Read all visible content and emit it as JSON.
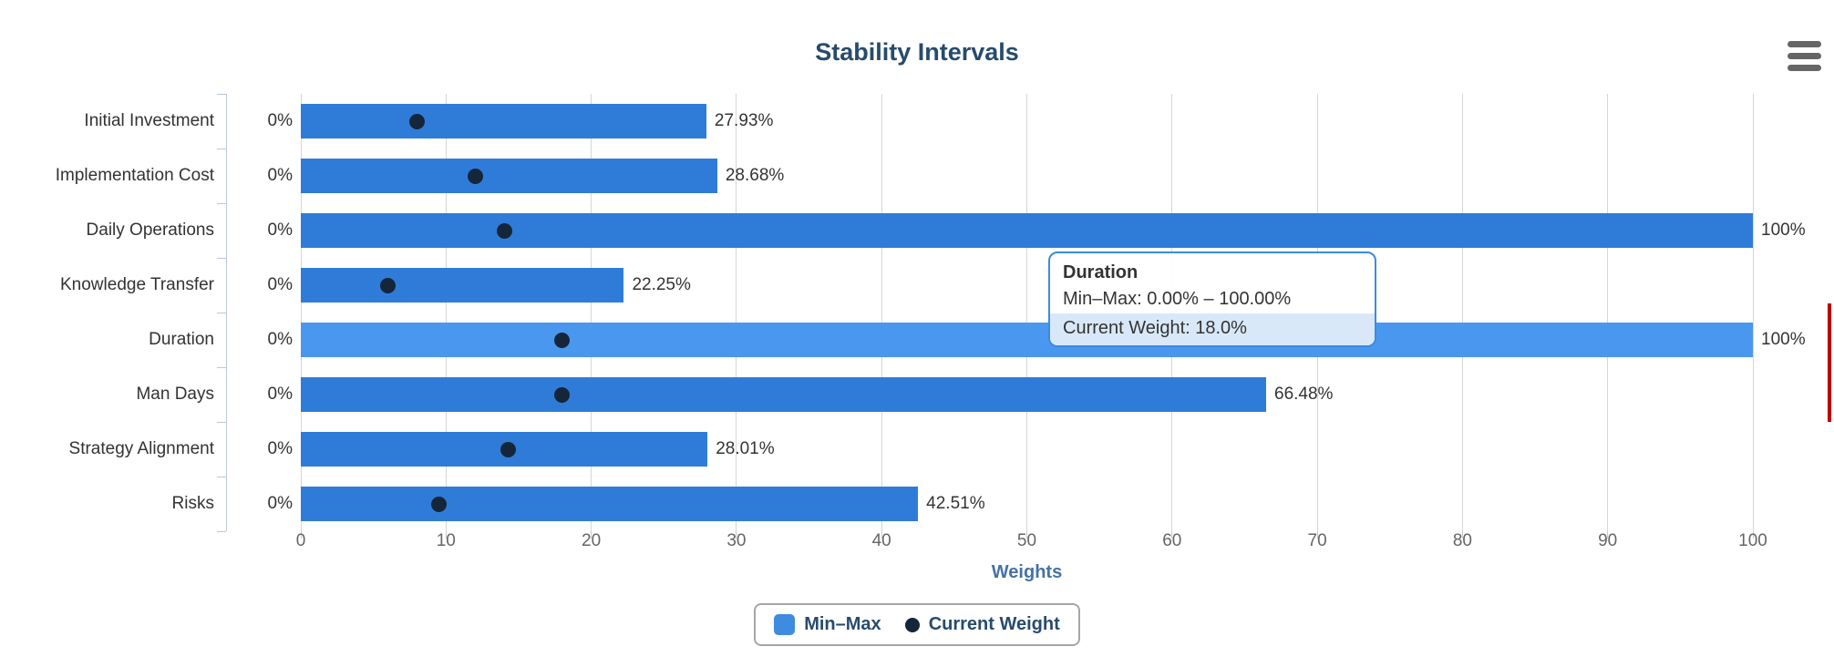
{
  "title": "Stability Intervals",
  "chart_data": {
    "type": "bar",
    "orientation": "horizontal",
    "title": "Stability Intervals",
    "categories": [
      "Initial Investment",
      "Implementation Cost",
      "Daily Operations",
      "Knowledge Transfer",
      "Duration",
      "Man Days",
      "Strategy Alignment",
      "Risks"
    ],
    "series": [
      {
        "name": "Min–Max",
        "type": "range",
        "min": [
          0,
          0,
          0,
          0,
          0,
          0,
          0,
          0
        ],
        "max": [
          27.93,
          28.68,
          100,
          22.25,
          100,
          66.48,
          28.01,
          42.51
        ]
      },
      {
        "name": "Current Weight",
        "type": "scatter",
        "values": [
          8,
          12,
          14,
          6,
          18,
          18,
          14.3,
          9.5
        ]
      }
    ],
    "bar_min_labels": [
      "0%",
      "0%",
      "0%",
      "0%",
      "0%",
      "0%",
      "0%",
      "0%"
    ],
    "bar_max_labels": [
      "27.93%",
      "28.68%",
      "100%",
      "22.25%",
      "100%",
      "66.48%",
      "28.01%",
      "42.51%"
    ],
    "xlabel": "Weights",
    "xlim": [
      0,
      100
    ],
    "xticks": [
      0,
      10,
      20,
      30,
      40,
      50,
      60,
      70,
      80,
      90,
      100
    ],
    "grid": true,
    "legend_position": "bottom",
    "highlighted_index": 4
  },
  "tooltip": {
    "title": "Duration",
    "minmax_line": "Min–Max: 0.00% – 100.00%",
    "weight_line": "Current Weight: 18.0%"
  },
  "legend": {
    "items": [
      {
        "label": "Min–Max",
        "marker": "square"
      },
      {
        "label": "Current Weight",
        "marker": "dot"
      }
    ]
  },
  "colors": {
    "bar": "#2f7cd8",
    "bar_highlight": "#4a97ef",
    "dot": "#15263a",
    "title_text": "#274b6d",
    "axis_title_text": "#4572a7",
    "tick_text": "#666666",
    "label_text": "#333333",
    "gridline": "#d6d6d6",
    "category_axis": "#b9c9da",
    "legend_border": "#a6a6a6",
    "tooltip_border": "#3d8ae0",
    "tooltip_band": "#d9e8f8",
    "menu_icon": "#666666",
    "edge_marker": "#c00000"
  }
}
